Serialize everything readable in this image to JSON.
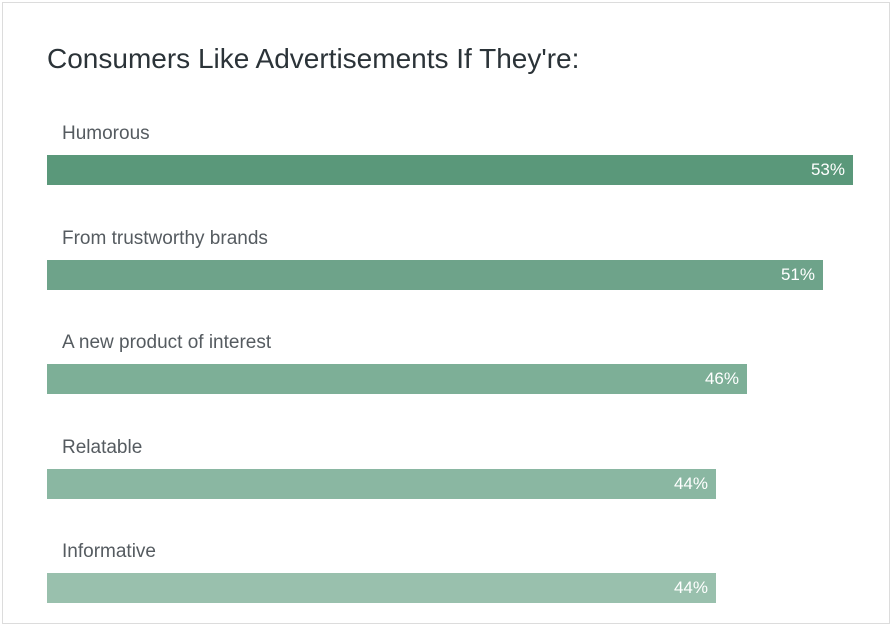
{
  "chart_data": {
    "type": "bar",
    "orientation": "horizontal",
    "title": "Consumers Like Advertisements If They're:",
    "categories": [
      "Humorous",
      "From trustworthy brands",
      "A new product of interest",
      "Relatable",
      "Informative"
    ],
    "values": [
      53,
      51,
      46,
      44,
      44
    ],
    "value_labels": [
      "53%",
      "51%",
      "46%",
      "44%",
      "44%"
    ],
    "xlim": [
      0,
      53
    ],
    "grid": false,
    "legend": "none",
    "colors": [
      "#5a987a",
      "#6ea38a",
      "#7daf97",
      "#8ab7a2",
      "#99c0ad"
    ]
  }
}
